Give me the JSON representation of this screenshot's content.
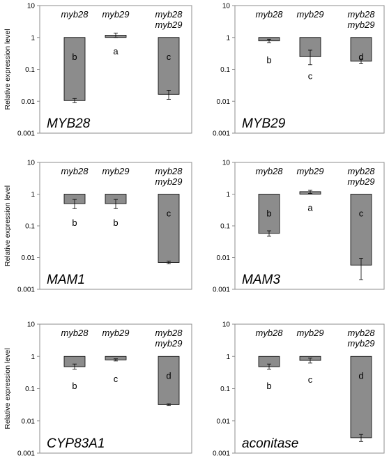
{
  "y_axis_label": "Relative expression level",
  "chart_data": [
    {
      "type": "bar",
      "scale": "log",
      "ylim": [
        0.001,
        10
      ],
      "yticks": [
        "10",
        "1",
        "0.1",
        "0.01",
        "0.001"
      ],
      "gene": "MYB28",
      "categories": [
        "myb28",
        "myb29",
        "myb28\nmyb29"
      ],
      "bars": [
        {
          "label": [
            "myb28"
          ],
          "value": 0.0105,
          "err": [
            0.009,
            0.0122
          ],
          "letter": "b"
        },
        {
          "label": [
            "myb29"
          ],
          "value": 1.18,
          "err": [
            1.0,
            1.38
          ],
          "letter": "a"
        },
        {
          "label": [
            "myb28",
            "myb29"
          ],
          "value": 0.0165,
          "err": [
            0.0115,
            0.022
          ],
          "letter": "c"
        }
      ]
    },
    {
      "type": "bar",
      "scale": "log",
      "ylim": [
        0.001,
        10
      ],
      "yticks": [
        "10",
        "1",
        "0.1",
        "0.01",
        "0.001"
      ],
      "gene": "MYB29",
      "categories": [
        "myb28",
        "myb29",
        "myb28\nmyb29"
      ],
      "bars": [
        {
          "label": [
            "myb28"
          ],
          "value": 0.78,
          "err": [
            0.68,
            0.88
          ],
          "letter": "b"
        },
        {
          "label": [
            "myb29"
          ],
          "value": 0.25,
          "err": [
            0.14,
            0.4
          ],
          "letter": "c"
        },
        {
          "label": [
            "myb28",
            "myb29"
          ],
          "value": 0.18,
          "err": [
            0.15,
            0.21
          ],
          "letter": "d"
        }
      ]
    },
    {
      "type": "bar",
      "scale": "log",
      "ylim": [
        0.001,
        10
      ],
      "yticks": [
        "10",
        "1",
        "0.1",
        "0.01",
        "0.001"
      ],
      "gene": "MAM1",
      "categories": [
        "myb28",
        "myb29",
        "myb28\nmyb29"
      ],
      "bars": [
        {
          "label": [
            "myb28"
          ],
          "value": 0.5,
          "err": [
            0.35,
            0.68
          ],
          "letter": "b"
        },
        {
          "label": [
            "myb29"
          ],
          "value": 0.5,
          "err": [
            0.35,
            0.68
          ],
          "letter": "b"
        },
        {
          "label": [
            "myb28",
            "myb29"
          ],
          "value": 0.007,
          "err": [
            0.0063,
            0.0077
          ],
          "letter": "c"
        }
      ]
    },
    {
      "type": "bar",
      "scale": "log",
      "ylim": [
        0.001,
        10
      ],
      "yticks": [
        "10",
        "1",
        "0.1",
        "0.01",
        "0.001"
      ],
      "gene": "MAM3",
      "categories": [
        "myb28",
        "myb29",
        "myb28\nmyb29"
      ],
      "bars": [
        {
          "label": [
            "myb28"
          ],
          "value": 0.058,
          "err": [
            0.047,
            0.07
          ],
          "letter": "b"
        },
        {
          "label": [
            "myb29"
          ],
          "value": 1.2,
          "err": [
            1.05,
            1.32
          ],
          "letter": "a"
        },
        {
          "label": [
            "myb28",
            "myb29"
          ],
          "value": 0.0058,
          "err": [
            0.002,
            0.0095
          ],
          "letter": "c"
        }
      ]
    },
    {
      "type": "bar",
      "scale": "log",
      "ylim": [
        0.001,
        10
      ],
      "yticks": [
        "10",
        "1",
        "0.1",
        "0.01",
        "0.001"
      ],
      "gene": "CYP83A1",
      "categories": [
        "myb28",
        "myb29",
        "myb28\nmyb29"
      ],
      "bars": [
        {
          "label": [
            "myb28"
          ],
          "value": 0.48,
          "err": [
            0.4,
            0.58
          ],
          "letter": "b"
        },
        {
          "label": [
            "myb29"
          ],
          "value": 0.78,
          "err": [
            0.72,
            0.84
          ],
          "letter": "c"
        },
        {
          "label": [
            "myb28",
            "myb29"
          ],
          "value": 0.032,
          "err": [
            0.03,
            0.034
          ],
          "letter": "d"
        }
      ]
    },
    {
      "type": "bar",
      "scale": "log",
      "ylim": [
        0.001,
        10
      ],
      "yticks": [
        "10",
        "1",
        "0.1",
        "0.01",
        "0.001"
      ],
      "gene": "aconitase",
      "categories": [
        "myb28",
        "myb29",
        "myb28\nmyb29"
      ],
      "bars": [
        {
          "label": [
            "myb28"
          ],
          "value": 0.48,
          "err": [
            0.4,
            0.58
          ],
          "letter": "b"
        },
        {
          "label": [
            "myb29"
          ],
          "value": 0.75,
          "err": [
            0.62,
            0.88
          ],
          "letter": "c"
        },
        {
          "label": [
            "myb28",
            "myb29"
          ],
          "value": 0.003,
          "err": [
            0.0023,
            0.0038
          ],
          "letter": "d"
        }
      ]
    }
  ]
}
